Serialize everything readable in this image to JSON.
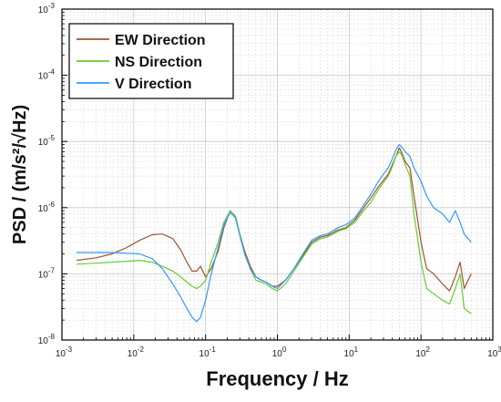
{
  "chart_data": {
    "type": "line",
    "title": "",
    "xlabel": "Frequency / Hz",
    "ylabel": "PSD / (m/s²/√Hz)",
    "x_scale": "log",
    "y_scale": "log",
    "xlim": [
      0.001,
      1000
    ],
    "ylim": [
      1e-08,
      0.001
    ],
    "grid": true,
    "legend_position": "top-left",
    "x_ticks": [
      {
        "value": 0.001,
        "base": "10",
        "exp": "-3"
      },
      {
        "value": 0.01,
        "base": "10",
        "exp": "-2"
      },
      {
        "value": 0.1,
        "base": "10",
        "exp": "-1"
      },
      {
        "value": 1,
        "base": "10",
        "exp": "0"
      },
      {
        "value": 10,
        "base": "10",
        "exp": "1"
      },
      {
        "value": 100,
        "base": "10",
        "exp": "2"
      },
      {
        "value": 1000,
        "base": "10",
        "exp": "3"
      }
    ],
    "y_ticks": [
      {
        "value": 1e-08,
        "base": "10",
        "exp": "-8"
      },
      {
        "value": 1e-07,
        "base": "10",
        "exp": "-7"
      },
      {
        "value": 1e-06,
        "base": "10",
        "exp": "-6"
      },
      {
        "value": 1e-05,
        "base": "10",
        "exp": "-5"
      },
      {
        "value": 0.0001,
        "base": "10",
        "exp": "-4"
      },
      {
        "value": 0.001,
        "base": "10",
        "exp": "-3"
      }
    ],
    "series": [
      {
        "name": "EW Direction",
        "color": "#a0522d",
        "x": [
          0.0016,
          0.003,
          0.005,
          0.008,
          0.012,
          0.018,
          0.025,
          0.035,
          0.045,
          0.055,
          0.065,
          0.075,
          0.085,
          0.1,
          0.12,
          0.15,
          0.18,
          0.22,
          0.26,
          0.3,
          0.35,
          0.42,
          0.5,
          0.6,
          0.7,
          0.85,
          1.0,
          1.3,
          1.7,
          2.2,
          3.0,
          4.0,
          5.0,
          7.0,
          9.0,
          12,
          16,
          20,
          25,
          30,
          35,
          40,
          45,
          50,
          55,
          60,
          70,
          80,
          100,
          120,
          150,
          200,
          250,
          300,
          350,
          400,
          500
        ],
        "y": [
          1.6e-07,
          1.75e-07,
          2e-07,
          2.5e-07,
          3.2e-07,
          3.9e-07,
          4e-07,
          3.4e-07,
          2.3e-07,
          1.5e-07,
          1.1e-07,
          1.1e-07,
          1.3e-07,
          9e-08,
          1.2e-07,
          2.2e-07,
          5e-07,
          9e-07,
          7.5e-07,
          4e-07,
          2.2e-07,
          1.3e-07,
          9e-08,
          8e-08,
          7.5e-08,
          6.5e-08,
          6.5e-08,
          8e-08,
          1.2e-07,
          1.8e-07,
          3e-07,
          3.6e-07,
          3.8e-07,
          4.6e-07,
          5e-07,
          6.5e-07,
          1e-06,
          1.4e-06,
          2e-06,
          2.6e-06,
          3.2e-06,
          4.5e-06,
          6e-06,
          8e-06,
          6.5e-06,
          5e-06,
          4e-06,
          1.5e-06,
          3e-07,
          1.2e-07,
          1e-07,
          7e-08,
          5.5e-08,
          9e-08,
          1.5e-07,
          6e-08,
          1e-07
        ]
      },
      {
        "name": "NS Direction",
        "color": "#66cc33",
        "x": [
          0.0016,
          0.003,
          0.005,
          0.008,
          0.012,
          0.018,
          0.025,
          0.035,
          0.045,
          0.055,
          0.065,
          0.075,
          0.085,
          0.1,
          0.12,
          0.15,
          0.18,
          0.22,
          0.26,
          0.3,
          0.35,
          0.42,
          0.5,
          0.6,
          0.7,
          0.85,
          1.0,
          1.3,
          1.7,
          2.2,
          3.0,
          4.0,
          5.0,
          7.0,
          9.0,
          12,
          16,
          20,
          25,
          30,
          35,
          40,
          45,
          50,
          55,
          60,
          70,
          80,
          100,
          120,
          150,
          200,
          250,
          300,
          350,
          400,
          500
        ],
        "y": [
          1.4e-07,
          1.45e-07,
          1.5e-07,
          1.55e-07,
          1.6e-07,
          1.5e-07,
          1.3e-07,
          1.1e-07,
          9e-08,
          7.5e-08,
          6.5e-08,
          6e-08,
          6.5e-08,
          8e-08,
          1.5e-07,
          3e-07,
          6e-07,
          9e-07,
          7.5e-07,
          4e-07,
          2e-07,
          1.2e-07,
          8e-08,
          7.5e-08,
          7e-08,
          6e-08,
          5.5e-08,
          7e-08,
          1.1e-07,
          1.7e-07,
          2.8e-07,
          3.4e-07,
          3.6e-07,
          4.4e-07,
          4.8e-07,
          6e-07,
          9e-07,
          1.2e-06,
          1.8e-06,
          2.4e-06,
          3e-06,
          4.2e-06,
          6e-06,
          7e-06,
          6e-06,
          4.5e-06,
          3e-06,
          8e-07,
          1.5e-07,
          6e-08,
          5e-08,
          4e-08,
          3.5e-08,
          6e-08,
          1e-07,
          3e-08,
          2.5e-08
        ]
      },
      {
        "name": "V Direction",
        "color": "#3399ff",
        "x": [
          0.0016,
          0.003,
          0.005,
          0.008,
          0.012,
          0.018,
          0.025,
          0.035,
          0.045,
          0.055,
          0.065,
          0.075,
          0.085,
          0.1,
          0.12,
          0.15,
          0.18,
          0.22,
          0.26,
          0.3,
          0.35,
          0.42,
          0.5,
          0.6,
          0.7,
          0.85,
          1.0,
          1.3,
          1.7,
          2.2,
          3.0,
          4.0,
          5.0,
          7.0,
          9.0,
          12,
          16,
          20,
          25,
          30,
          35,
          40,
          45,
          50,
          55,
          60,
          70,
          80,
          100,
          120,
          150,
          200,
          250,
          300,
          350,
          400,
          500
        ],
        "y": [
          2.1e-07,
          2.1e-07,
          2.1e-07,
          2.05e-07,
          2e-07,
          1.7e-07,
          1.2e-07,
          7e-08,
          4.5e-08,
          3e-08,
          2.2e-08,
          1.9e-08,
          2.2e-08,
          4e-08,
          1e-07,
          2.5e-07,
          5.5e-07,
          8.5e-07,
          7e-07,
          3.8e-07,
          2e-07,
          1.2e-07,
          9e-08,
          8e-08,
          7.5e-08,
          6.5e-08,
          6e-08,
          8e-08,
          1.2e-07,
          1.9e-07,
          3.2e-07,
          3.8e-07,
          4e-07,
          5e-07,
          5.5e-07,
          7e-07,
          1.1e-06,
          1.6e-06,
          2.4e-06,
          3.2e-06,
          4e-06,
          5.5e-06,
          7.5e-06,
          9e-06,
          8e-06,
          7e-06,
          6e-06,
          4e-06,
          2.5e-06,
          1.5e-06,
          1e-06,
          8e-07,
          6e-07,
          9e-07,
          6e-07,
          4e-07,
          3e-07
        ]
      }
    ]
  }
}
